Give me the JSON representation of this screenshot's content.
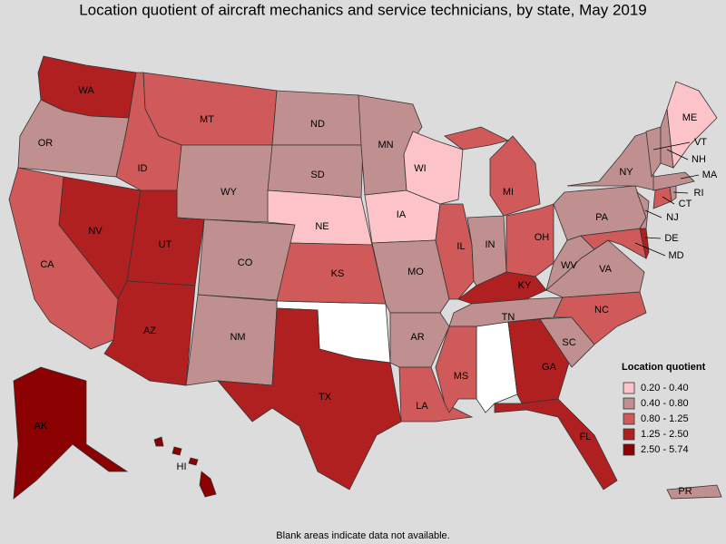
{
  "title": "Location quotient of aircraft mechanics and service technicians, by state, May 2019",
  "note": "Blank areas indicate data not available.",
  "legend": {
    "title": "Location quotient",
    "items": [
      {
        "label": "0.20 - 0.40",
        "color": "#fcc3c9"
      },
      {
        "label": "0.40 - 0.80",
        "color": "#c09090"
      },
      {
        "label": "0.80 - 1.25",
        "color": "#d05a5a"
      },
      {
        "label": "1.25 - 2.50",
        "color": "#b02020"
      },
      {
        "label": "2.50 - 5.74",
        "color": "#8b0000"
      }
    ]
  },
  "states": [
    {
      "abbr": "WA",
      "color": "#b02020"
    },
    {
      "abbr": "OR",
      "color": "#c09090"
    },
    {
      "abbr": "CA",
      "color": "#d05a5a"
    },
    {
      "abbr": "NV",
      "color": "#b02020"
    },
    {
      "abbr": "ID",
      "color": "#d05a5a"
    },
    {
      "abbr": "MT",
      "color": "#d05a5a"
    },
    {
      "abbr": "WY",
      "color": "#c09090"
    },
    {
      "abbr": "UT",
      "color": "#b02020"
    },
    {
      "abbr": "AZ",
      "color": "#b02020"
    },
    {
      "abbr": "CO",
      "color": "#c09090"
    },
    {
      "abbr": "NM",
      "color": "#c09090"
    },
    {
      "abbr": "ND",
      "color": "#c09090"
    },
    {
      "abbr": "SD",
      "color": "#c09090"
    },
    {
      "abbr": "NE",
      "color": "#fcc3c9"
    },
    {
      "abbr": "KS",
      "color": "#d05a5a"
    },
    {
      "abbr": "TX",
      "color": "#b02020"
    },
    {
      "abbr": "MN",
      "color": "#c09090"
    },
    {
      "abbr": "IA",
      "color": "#fcc3c9"
    },
    {
      "abbr": "WI",
      "color": "#fcc3c9"
    },
    {
      "abbr": "MO",
      "color": "#c09090"
    },
    {
      "abbr": "AR",
      "color": "#c09090"
    },
    {
      "abbr": "LA",
      "color": "#d05a5a"
    },
    {
      "abbr": "IL",
      "color": "#d05a5a"
    },
    {
      "abbr": "IN",
      "color": "#c09090"
    },
    {
      "abbr": "MI",
      "color": "#d05a5a"
    },
    {
      "abbr": "OH",
      "color": "#d05a5a"
    },
    {
      "abbr": "KY",
      "color": "#b02020"
    },
    {
      "abbr": "TN",
      "color": "#c09090"
    },
    {
      "abbr": "MS",
      "color": "#d05a5a"
    },
    {
      "abbr": "GA",
      "color": "#b02020"
    },
    {
      "abbr": "FL",
      "color": "#b02020"
    },
    {
      "abbr": "SC",
      "color": "#c09090"
    },
    {
      "abbr": "NC",
      "color": "#d05a5a"
    },
    {
      "abbr": "VA",
      "color": "#c09090"
    },
    {
      "abbr": "WV",
      "color": "#c09090"
    },
    {
      "abbr": "MD",
      "color": "#d05a5a"
    },
    {
      "abbr": "DE",
      "color": "#b02020"
    },
    {
      "abbr": "PA",
      "color": "#c09090"
    },
    {
      "abbr": "NJ",
      "color": "#c09090"
    },
    {
      "abbr": "NY",
      "color": "#c09090"
    },
    {
      "abbr": "CT",
      "color": "#d05a5a"
    },
    {
      "abbr": "RI",
      "color": "#c09090"
    },
    {
      "abbr": "MA",
      "color": "#c09090"
    },
    {
      "abbr": "VT",
      "color": "#c09090"
    },
    {
      "abbr": "NH",
      "color": "#c09090"
    },
    {
      "abbr": "ME",
      "color": "#fcc3c9"
    },
    {
      "abbr": "AK",
      "color": "#8b0000"
    },
    {
      "abbr": "HI",
      "color": "#8b0000"
    },
    {
      "abbr": "PR",
      "color": "#c09090"
    }
  ]
}
